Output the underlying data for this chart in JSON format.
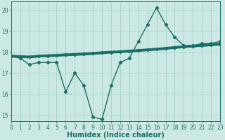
{
  "title": "",
  "xlabel": "Humidex (Indice chaleur)",
  "ylabel": "",
  "bg_color": "#cce8e4",
  "grid_color": "#aad4cc",
  "line_color": "#1a6e66",
  "x_wavy": [
    0,
    1,
    2,
    3,
    4,
    5,
    6,
    7,
    8,
    9,
    10,
    11,
    12,
    13,
    14,
    15,
    16,
    17,
    18,
    19,
    20,
    21,
    22,
    23
  ],
  "y_wavy": [
    17.8,
    17.7,
    17.4,
    17.5,
    17.5,
    17.5,
    16.1,
    17.0,
    16.4,
    14.9,
    14.8,
    16.4,
    17.5,
    17.7,
    18.5,
    19.3,
    20.1,
    19.3,
    18.7,
    18.3,
    18.3,
    18.4,
    18.4,
    18.5
  ],
  "x_trend": [
    0,
    1,
    2,
    3,
    4,
    5,
    6,
    7,
    8,
    9,
    10,
    11,
    12,
    13,
    14,
    15,
    16,
    17,
    18,
    19,
    20,
    21,
    22,
    23
  ],
  "y_trend": [
    17.8,
    17.78,
    17.76,
    17.8,
    17.82,
    17.84,
    17.86,
    17.88,
    17.9,
    17.93,
    17.96,
    17.99,
    18.01,
    18.04,
    18.07,
    18.1,
    18.13,
    18.17,
    18.21,
    18.25,
    18.28,
    18.31,
    18.34,
    18.37
  ],
  "xlim": [
    0,
    23
  ],
  "ylim": [
    14.7,
    20.4
  ],
  "yticks": [
    15,
    16,
    17,
    18,
    19,
    20
  ],
  "xticks": [
    0,
    1,
    2,
    3,
    4,
    5,
    6,
    7,
    8,
    9,
    10,
    11,
    12,
    13,
    14,
    15,
    16,
    17,
    18,
    19,
    20,
    21,
    22,
    23
  ],
  "tick_fontsize": 5.5,
  "label_fontsize": 7.0,
  "marker": "D",
  "markersize": 2.2,
  "linewidth_wavy": 1.0,
  "linewidth_trend": 2.8
}
